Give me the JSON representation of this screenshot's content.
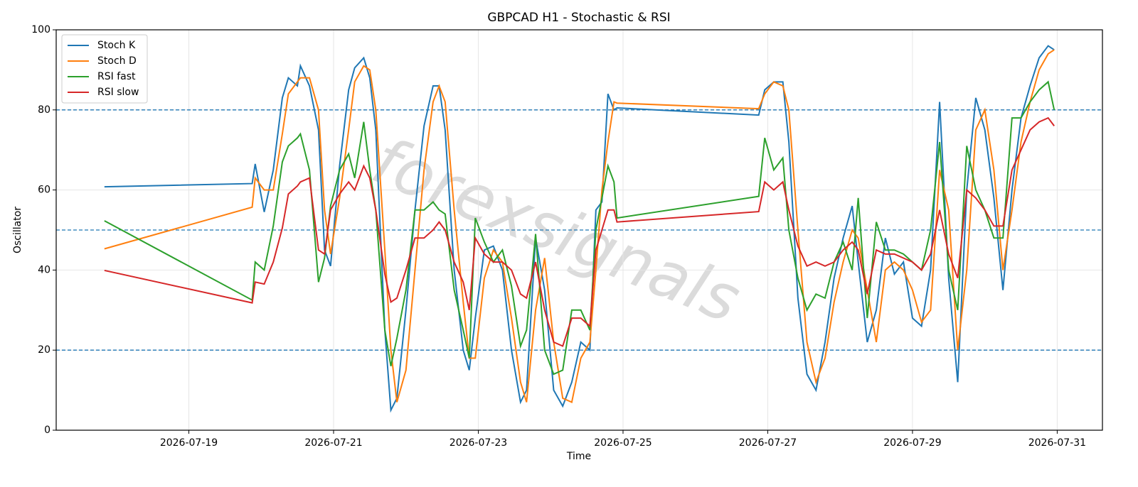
{
  "chart_data": {
    "type": "line",
    "title": "GBPCAD H1 - Stochastic & RSI",
    "xlabel": "Time",
    "ylabel": "Oscillator",
    "watermark": "forexsignals",
    "x": [
      "2026-07-17 20:00",
      "2026-07-19 21:00",
      "2026-07-19 22:00",
      "2026-07-20 01:00",
      "2026-07-20 04:00",
      "2026-07-20 07:00",
      "2026-07-20 09:00",
      "2026-07-20 12:00",
      "2026-07-20 13:00",
      "2026-07-20 16:00",
      "2026-07-20 19:00",
      "2026-07-20 21:00",
      "2026-07-20 23:00",
      "2026-07-21 02:00",
      "2026-07-21 05:00",
      "2026-07-21 07:00",
      "2026-07-21 10:00",
      "2026-07-21 12:00",
      "2026-07-21 14:00",
      "2026-07-21 17:00",
      "2026-07-21 19:00",
      "2026-07-21 21:00",
      "2026-07-22 00:00",
      "2026-07-22 03:00",
      "2026-07-22 06:00",
      "2026-07-22 09:00",
      "2026-07-22 11:00",
      "2026-07-22 13:00",
      "2026-07-22 16:00",
      "2026-07-22 19:00",
      "2026-07-22 21:00",
      "2026-07-22 23:00",
      "2026-07-23 02:00",
      "2026-07-23 05:00",
      "2026-07-23 08:00",
      "2026-07-23 11:00",
      "2026-07-23 14:00",
      "2026-07-23 16:00",
      "2026-07-23 19:00",
      "2026-07-23 22:00",
      "2026-07-24 01:00",
      "2026-07-24 04:00",
      "2026-07-24 07:00",
      "2026-07-24 10:00",
      "2026-07-24 13:00",
      "2026-07-24 15:00",
      "2026-07-24 17:00",
      "2026-07-24 19:00",
      "2026-07-24 21:00",
      "2026-07-24 22:00",
      "2026-07-26 21:00",
      "2026-07-26 23:00",
      "2026-07-27 02:00",
      "2026-07-27 05:00",
      "2026-07-27 07:00",
      "2026-07-27 10:00",
      "2026-07-27 13:00",
      "2026-07-27 16:00",
      "2026-07-27 19:00",
      "2026-07-27 22:00",
      "2026-07-28 01:00",
      "2026-07-28 04:00",
      "2026-07-28 06:00",
      "2026-07-28 09:00",
      "2026-07-28 12:00",
      "2026-07-28 15:00",
      "2026-07-28 18:00",
      "2026-07-28 21:00",
      "2026-07-29 00:00",
      "2026-07-29 03:00",
      "2026-07-29 06:00",
      "2026-07-29 09:00",
      "2026-07-29 12:00",
      "2026-07-29 15:00",
      "2026-07-29 18:00",
      "2026-07-29 21:00",
      "2026-07-30 00:00",
      "2026-07-30 03:00",
      "2026-07-30 06:00",
      "2026-07-30 09:00",
      "2026-07-30 12:00",
      "2026-07-30 15:00",
      "2026-07-30 18:00",
      "2026-07-30 21:00",
      "2026-07-30 23:00"
    ],
    "series": [
      {
        "name": "Stoch K",
        "color": "#1f77b4",
        "values": [
          60.8,
          61.6,
          66.5,
          54.5,
          65,
          83,
          88,
          86,
          91,
          86,
          75,
          45,
          41,
          66,
          85,
          90.5,
          93,
          88,
          75,
          25,
          5,
          8,
          30,
          55,
          76,
          86,
          86,
          75,
          40,
          20,
          15,
          28,
          45,
          46,
          40,
          20,
          7,
          10,
          48,
          35,
          10,
          6,
          12,
          22,
          20,
          55,
          57,
          84,
          80,
          80.5,
          78.7,
          85,
          87,
          87,
          72,
          33,
          14,
          10,
          22,
          38,
          48,
          56,
          42,
          22,
          30,
          48,
          39,
          42,
          28,
          26,
          40,
          82,
          38,
          12,
          60,
          83,
          75,
          58,
          35,
          60,
          78,
          86,
          93,
          96,
          95
        ]
      },
      {
        "name": "Stoch D",
        "color": "#ff7f0e",
        "values": [
          45.3,
          55.7,
          63,
          60,
          60,
          74,
          84,
          87,
          88,
          88,
          80,
          55,
          44,
          58,
          75,
          87,
          91,
          90,
          80,
          45,
          20,
          7,
          15,
          40,
          65,
          82,
          86,
          82,
          55,
          32,
          18,
          18,
          38,
          45,
          42,
          28,
          12,
          7,
          30,
          43,
          22,
          8,
          7,
          18,
          22,
          40,
          60,
          72,
          82,
          81.7,
          80.3,
          84,
          87,
          86,
          80,
          50,
          22,
          12,
          18,
          32,
          42,
          50,
          48,
          35,
          22,
          40,
          42,
          40,
          35,
          27,
          30,
          65,
          55,
          20,
          40,
          75,
          80,
          65,
          40,
          55,
          72,
          82,
          90,
          94,
          95
        ]
      },
      {
        "name": "RSI fast",
        "color": "#2ca02c",
        "values": [
          52.3,
          32.5,
          42,
          40,
          51,
          67,
          71,
          73,
          74,
          65,
          37,
          43,
          56,
          65,
          69,
          63,
          77,
          65,
          55,
          25,
          16,
          23,
          35,
          55,
          55,
          57,
          55,
          54,
          35,
          25,
          18,
          53,
          47,
          42,
          45,
          36,
          21,
          25,
          49,
          20,
          14,
          15,
          30,
          30,
          25,
          50,
          58,
          66,
          62,
          53,
          58.4,
          73,
          65,
          68,
          50,
          38,
          30,
          34,
          33,
          42,
          47,
          40,
          58,
          28,
          52,
          45,
          45,
          44,
          42,
          40,
          50,
          72,
          40,
          30,
          71,
          60,
          55,
          48,
          48,
          78,
          78,
          82,
          85,
          87,
          80
        ]
      },
      {
        "name": "RSI slow",
        "color": "#d62728",
        "values": [
          39.9,
          31.8,
          37,
          36.5,
          42,
          50.5,
          59,
          61,
          62,
          63,
          45,
          44,
          55,
          59,
          62,
          60,
          66,
          63,
          55,
          39,
          32,
          33,
          40,
          48,
          48,
          50,
          52,
          50,
          42,
          37,
          30,
          48,
          44,
          42,
          42,
          40,
          34,
          33,
          42,
          30,
          22,
          21,
          28,
          28,
          26,
          45,
          50,
          55,
          55,
          52,
          54.6,
          62,
          60,
          62,
          55,
          46,
          41,
          42,
          41,
          42,
          45,
          47,
          45,
          34,
          45,
          44,
          44,
          43,
          42,
          40,
          44,
          55,
          44,
          38,
          60,
          58,
          55,
          51,
          51,
          65,
          70,
          75,
          77,
          78,
          76
        ]
      }
    ],
    "xlim": [
      "2026-07-17 04:00",
      "2026-07-31 15:00"
    ],
    "xticks": [
      "2026-07-19",
      "2026-07-21",
      "2026-07-23",
      "2026-07-25",
      "2026-07-27",
      "2026-07-29",
      "2026-07-31"
    ],
    "ylim": [
      0,
      100
    ],
    "yticks": [
      0,
      20,
      40,
      60,
      80,
      100
    ],
    "hlines": [
      20,
      50,
      80
    ],
    "hline_color": "#1f77b4",
    "grid": true,
    "legend": "upper left"
  }
}
